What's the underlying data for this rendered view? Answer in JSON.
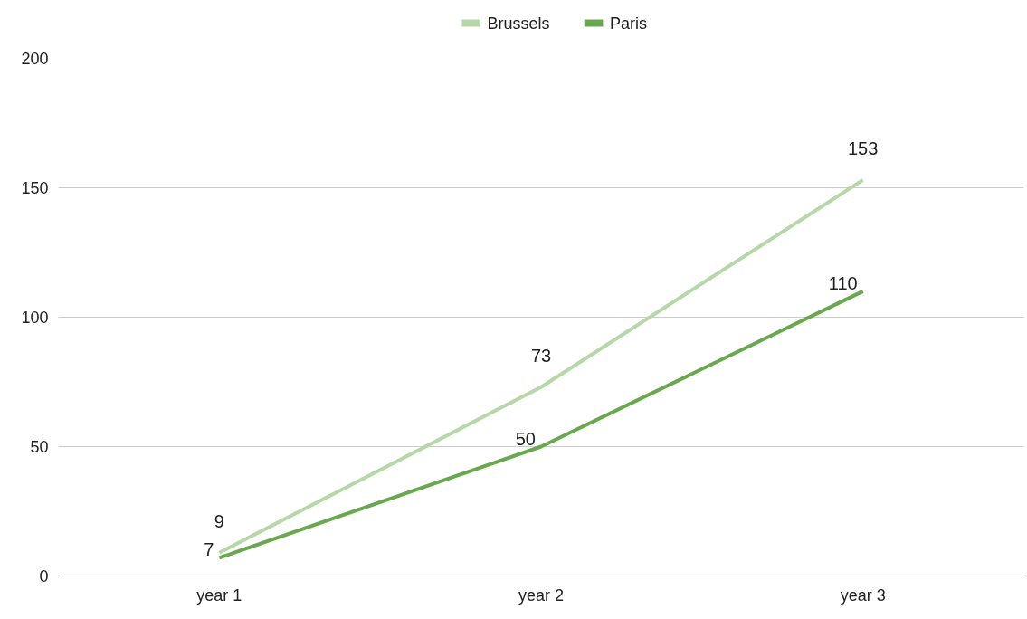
{
  "chart_data": {
    "type": "line",
    "categories": [
      "year 1",
      "year 2",
      "year 3"
    ],
    "series": [
      {
        "name": "Brussels",
        "color": "#b6d7a8",
        "values": [
          9,
          73,
          153
        ]
      },
      {
        "name": "Paris",
        "color": "#6aa84f",
        "values": [
          7,
          50,
          110
        ]
      }
    ],
    "ylim": [
      0,
      200
    ],
    "yticks": [
      0,
      50,
      100,
      150,
      200
    ],
    "grid": "y",
    "legend": "top",
    "data_labels": true,
    "marker": "none",
    "line_style": "solid"
  }
}
